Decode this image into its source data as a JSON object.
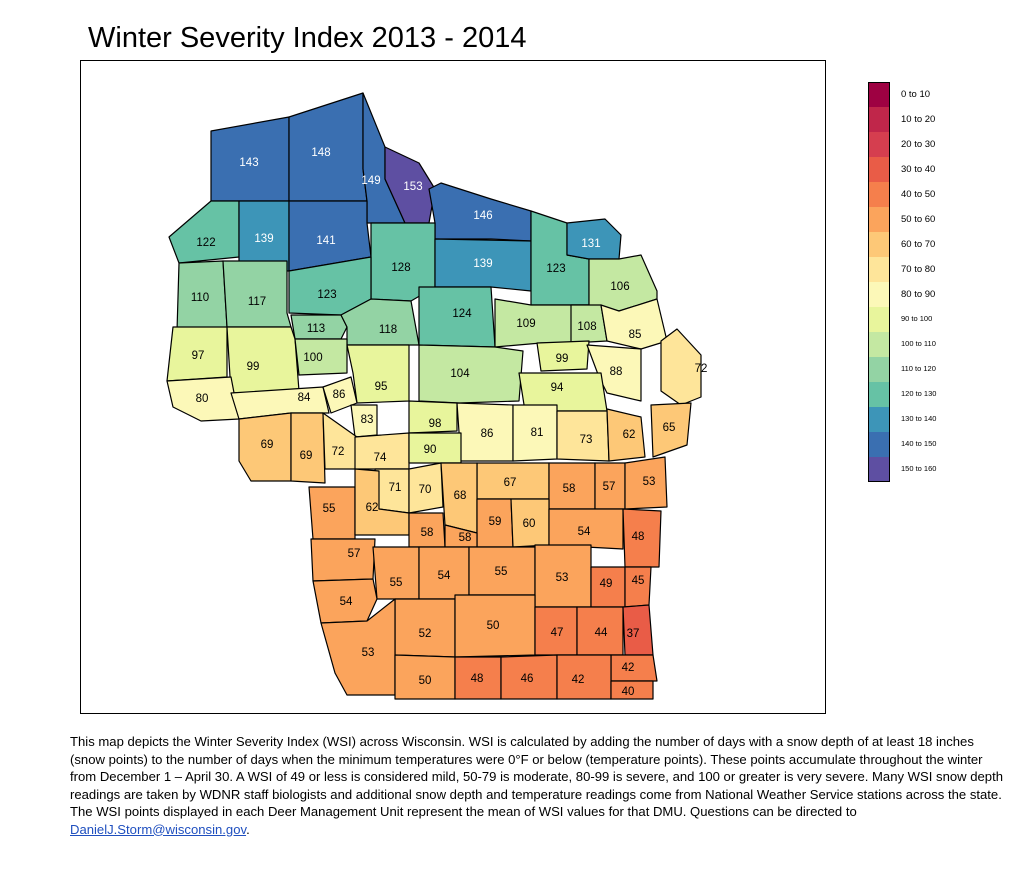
{
  "title": "Winter Severity Index 2013 - 2014",
  "legend": [
    {
      "label": "0 to 10",
      "color": "#9e0142"
    },
    {
      "label": "10 to 20",
      "color": "#c0264a"
    },
    {
      "label": "20 to 30",
      "color": "#d53e4f"
    },
    {
      "label": "30 to 40",
      "color": "#e95c47"
    },
    {
      "label": "40 to 50",
      "color": "#f57f4c"
    },
    {
      "label": "50 to 60",
      "color": "#fba45c"
    },
    {
      "label": "60 to 70",
      "color": "#fdc877"
    },
    {
      "label": "70 to 80",
      "color": "#fee59a"
    },
    {
      "label": "80 to 90",
      "color": "#fcf8b8"
    },
    {
      "label": "90 to 100",
      "color": "#e8f59c"
    },
    {
      "label": "100 to 110",
      "color": "#c4e8a2"
    },
    {
      "label": "110 to 120",
      "color": "#93d3a4"
    },
    {
      "label": "120 to 130",
      "color": "#66c2a5"
    },
    {
      "label": "130 to 140",
      "color": "#3d95b8"
    },
    {
      "label": "140 to 150",
      "color": "#3a6fb1"
    },
    {
      "label": "150 to 160",
      "color": "#5e4fa2"
    }
  ],
  "units": [
    {
      "value": "143"
    },
    {
      "value": "148"
    },
    {
      "value": "149"
    },
    {
      "value": "153"
    },
    {
      "value": "146"
    },
    {
      "value": "122"
    },
    {
      "value": "139"
    },
    {
      "value": "141"
    },
    {
      "value": "128"
    },
    {
      "value": "139"
    },
    {
      "value": "123"
    },
    {
      "value": "131"
    },
    {
      "value": "110"
    },
    {
      "value": "117"
    },
    {
      "value": "123"
    },
    {
      "value": "106"
    },
    {
      "value": "113"
    },
    {
      "value": "118"
    },
    {
      "value": "124"
    },
    {
      "value": "109"
    },
    {
      "value": "108"
    },
    {
      "value": "85"
    },
    {
      "value": "97"
    },
    {
      "value": "99"
    },
    {
      "value": "100"
    },
    {
      "value": "104"
    },
    {
      "value": "99"
    },
    {
      "value": "88"
    },
    {
      "value": "72"
    },
    {
      "value": "95"
    },
    {
      "value": "94"
    },
    {
      "value": "80"
    },
    {
      "value": "84"
    },
    {
      "value": "86"
    },
    {
      "value": "83"
    },
    {
      "value": "98"
    },
    {
      "value": "86"
    },
    {
      "value": "81"
    },
    {
      "value": "73"
    },
    {
      "value": "62"
    },
    {
      "value": "65"
    },
    {
      "value": "69"
    },
    {
      "value": "69"
    },
    {
      "value": "72"
    },
    {
      "value": "74"
    },
    {
      "value": "90"
    },
    {
      "value": "67"
    },
    {
      "value": "58"
    },
    {
      "value": "57"
    },
    {
      "value": "53"
    },
    {
      "value": "71"
    },
    {
      "value": "70"
    },
    {
      "value": "68"
    },
    {
      "value": "55"
    },
    {
      "value": "62"
    },
    {
      "value": "59"
    },
    {
      "value": "60"
    },
    {
      "value": "54"
    },
    {
      "value": "48"
    },
    {
      "value": "58"
    },
    {
      "value": "58"
    },
    {
      "value": "57"
    },
    {
      "value": "55"
    },
    {
      "value": "54"
    },
    {
      "value": "55"
    },
    {
      "value": "53"
    },
    {
      "value": "49"
    },
    {
      "value": "45"
    },
    {
      "value": "54"
    },
    {
      "value": "52"
    },
    {
      "value": "50"
    },
    {
      "value": "47"
    },
    {
      "value": "44"
    },
    {
      "value": "37"
    },
    {
      "value": "53"
    },
    {
      "value": "42"
    },
    {
      "value": "50"
    },
    {
      "value": "48"
    },
    {
      "value": "46"
    },
    {
      "value": "42"
    },
    {
      "value": "40"
    }
  ],
  "description": {
    "text": "This map depicts the Winter Severity Index (WSI) across Wisconsin. WSI is calculated by adding the number of days with a snow depth of at least 18 inches (snow points) to the number of days when the minimum temperatures were 0°F or below (temperature points). These points accumulate throughout the winter from December 1 – April 30. A WSI of 49 or less is considered mild, 50-79 is moderate, 80-99 is severe, and 100 or greater is very severe. Many WSI snow depth readings are taken by WDNR staff biologists and additional snow depth and temperature readings come from National Weather Service stations across the state. The WSI points displayed in each Deer Management Unit represent the mean of WSI values for that DMU. Questions can be directed to ",
    "email": "DanielJ.Storm@wisconsin.gov",
    "end": "."
  }
}
